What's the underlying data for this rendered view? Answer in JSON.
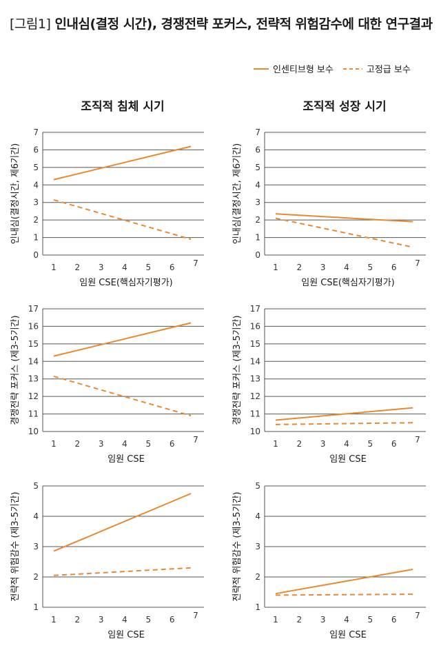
{
  "figure": {
    "tag": "[그림1]",
    "title": "인내심(결정 시간), 경쟁전략 포커스, 전략적 위험감수에 대한 연구결과"
  },
  "legend": {
    "incentive": "인센티브형 보수",
    "fixed": "고정급 보수"
  },
  "colors": {
    "line": "#e8892f",
    "grid": "#555555"
  },
  "columns": [
    "조직적 침체 시기",
    "조직적 성장 시기"
  ],
  "chart_data": [
    {
      "type": "line",
      "panel": "row1-left",
      "ylabel": "인내심(결정시간, 제6기간)",
      "xlabel": "임원 CSE(핵심자기평가)",
      "ylim": [
        0,
        7
      ],
      "yticks": [
        0,
        1,
        2,
        3,
        4,
        5,
        6,
        7
      ],
      "xlim": [
        1,
        7
      ],
      "xticks": [
        1,
        2,
        3,
        4,
        5,
        6,
        7
      ],
      "series": [
        {
          "name": "인센티브형 보수",
          "style": "solid",
          "x": [
            1,
            6.8
          ],
          "values": [
            4.3,
            6.2
          ]
        },
        {
          "name": "고정급 보수",
          "style": "dashed",
          "x": [
            1,
            6.8
          ],
          "values": [
            3.15,
            0.9
          ]
        }
      ]
    },
    {
      "type": "line",
      "panel": "row1-right",
      "ylabel": "인내심(결정시간, 제6기간)",
      "xlabel": "임원 CSE(핵심자기평가)",
      "ylim": [
        0,
        7
      ],
      "yticks": [
        0,
        1,
        2,
        3,
        4,
        5,
        6,
        7
      ],
      "xlim": [
        1,
        7
      ],
      "xticks": [
        1,
        2,
        3,
        4,
        5,
        6,
        7
      ],
      "series": [
        {
          "name": "인센티브형 보수",
          "style": "solid",
          "x": [
            1,
            6.8
          ],
          "values": [
            2.35,
            1.9
          ]
        },
        {
          "name": "고정급 보수",
          "style": "dashed",
          "x": [
            1,
            6.8
          ],
          "values": [
            2.1,
            0.45
          ]
        }
      ]
    },
    {
      "type": "line",
      "panel": "row2-left",
      "ylabel": "경쟁전략 포커스 (제3-5기간)",
      "xlabel": "임원 CSE",
      "ylim": [
        10,
        17
      ],
      "yticks": [
        10,
        11,
        12,
        13,
        14,
        15,
        16,
        17
      ],
      "xlim": [
        1,
        7
      ],
      "xticks": [
        1,
        2,
        3,
        4,
        5,
        6,
        7
      ],
      "series": [
        {
          "name": "인센티브형 보수",
          "style": "solid",
          "x": [
            1,
            6.8
          ],
          "values": [
            14.3,
            16.2
          ]
        },
        {
          "name": "고정급 보수",
          "style": "dashed",
          "x": [
            1,
            6.8
          ],
          "values": [
            13.15,
            10.9
          ]
        }
      ]
    },
    {
      "type": "line",
      "panel": "row2-right",
      "ylabel": "경쟁전략 포커스 (제3-5기간)",
      "xlabel": "임원 CSE",
      "ylim": [
        10,
        17
      ],
      "yticks": [
        10,
        11,
        12,
        13,
        14,
        15,
        16,
        17
      ],
      "xlim": [
        1,
        7
      ],
      "xticks": [
        1,
        2,
        3,
        4,
        5,
        6,
        7
      ],
      "series": [
        {
          "name": "인센티브형 보수",
          "style": "solid",
          "x": [
            1,
            6.8
          ],
          "values": [
            10.65,
            11.35
          ]
        },
        {
          "name": "고정급 보수",
          "style": "dashed",
          "x": [
            1,
            6.8
          ],
          "values": [
            10.4,
            10.5
          ]
        }
      ]
    },
    {
      "type": "line",
      "panel": "row3-left",
      "ylabel": "전략적 위험감수 (제3-5기간)",
      "xlabel": "임원 CSE",
      "ylim": [
        1,
        5
      ],
      "yticks": [
        1,
        2,
        3,
        4,
        5
      ],
      "xlim": [
        1,
        7
      ],
      "xticks": [
        1,
        2,
        3,
        4,
        5,
        6,
        7
      ],
      "series": [
        {
          "name": "인센티브형 보수",
          "style": "solid",
          "x": [
            1,
            6.8
          ],
          "values": [
            2.85,
            4.75
          ]
        },
        {
          "name": "고정급 보수",
          "style": "dashed",
          "x": [
            1,
            6.8
          ],
          "values": [
            2.05,
            2.3
          ]
        }
      ]
    },
    {
      "type": "line",
      "panel": "row3-right",
      "ylabel": "전략적 위험감수 (제3-5기간)",
      "xlabel": "임원 CSE",
      "ylim": [
        1,
        5
      ],
      "yticks": [
        1,
        2,
        3,
        4,
        5
      ],
      "xlim": [
        1,
        7
      ],
      "xticks": [
        1,
        2,
        3,
        4,
        5,
        6,
        7
      ],
      "series": [
        {
          "name": "인센티브형 보수",
          "style": "solid",
          "x": [
            1,
            6.8
          ],
          "values": [
            1.45,
            2.25
          ]
        },
        {
          "name": "고정급 보수",
          "style": "dashed",
          "x": [
            1,
            6.8
          ],
          "values": [
            1.4,
            1.43
          ]
        }
      ]
    }
  ]
}
